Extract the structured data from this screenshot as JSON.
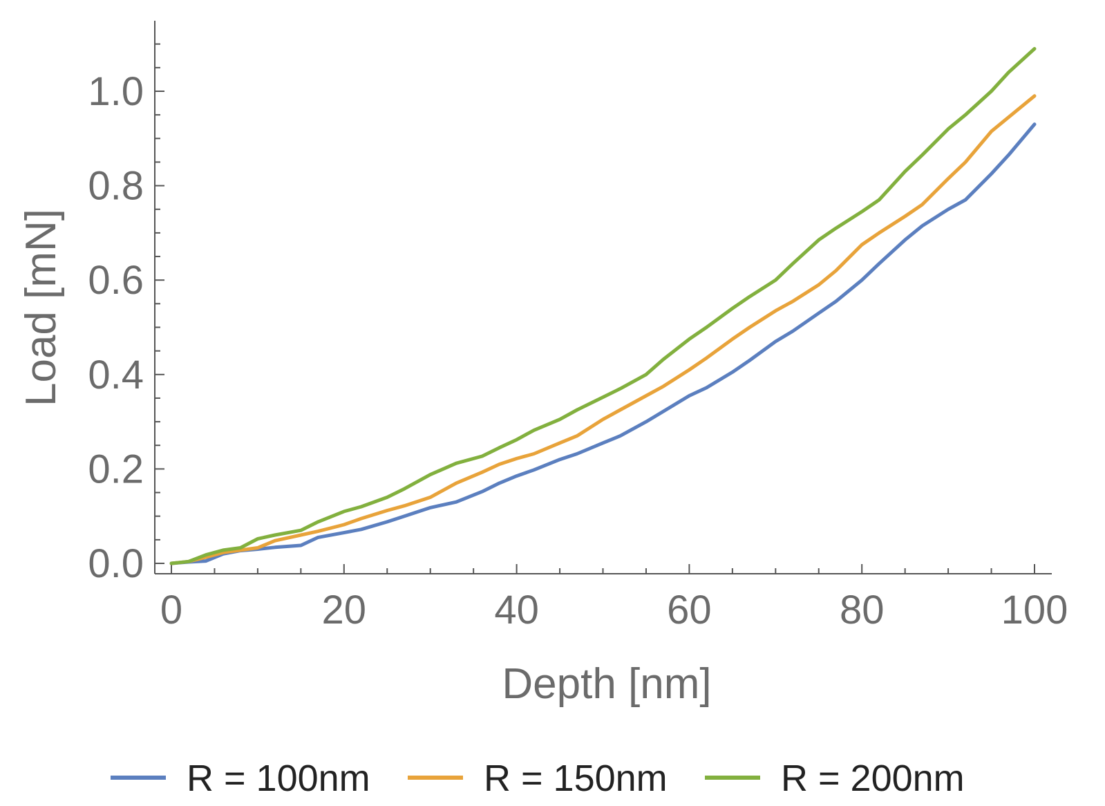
{
  "chart_data": {
    "type": "line",
    "title": "",
    "xlabel": "Depth [nm]",
    "ylabel": "Load [mN]",
    "xlim": [
      0,
      100
    ],
    "ylim": [
      0,
      1.1
    ],
    "grid": false,
    "legend_position": "bottom",
    "x_ticks": [
      0,
      20,
      40,
      60,
      80,
      100
    ],
    "x_tick_labels": [
      "0",
      "20",
      "40",
      "60",
      "80",
      "100"
    ],
    "y_ticks": [
      0.0,
      0.2,
      0.4,
      0.6,
      0.8,
      1.0
    ],
    "y_tick_labels": [
      "0.0",
      "0.2",
      "0.4",
      "0.6",
      "0.8",
      "1.0"
    ],
    "x": [
      0,
      2,
      4,
      6,
      8,
      10,
      12,
      15,
      17,
      20,
      22,
      25,
      27,
      30,
      33,
      36,
      38,
      40,
      42,
      45,
      47,
      50,
      52,
      55,
      57,
      60,
      62,
      65,
      67,
      70,
      72,
      75,
      77,
      80,
      82,
      85,
      87,
      90,
      92,
      95,
      97,
      100
    ],
    "series": [
      {
        "name": "R = 100nm",
        "color": "#5b7fbf",
        "values": [
          0.0,
          0.003,
          0.005,
          0.02,
          0.027,
          0.03,
          0.034,
          0.038,
          0.055,
          0.065,
          0.072,
          0.088,
          0.1,
          0.118,
          0.13,
          0.152,
          0.17,
          0.185,
          0.198,
          0.22,
          0.232,
          0.255,
          0.27,
          0.3,
          0.322,
          0.355,
          0.372,
          0.405,
          0.43,
          0.47,
          0.492,
          0.53,
          0.555,
          0.6,
          0.635,
          0.685,
          0.715,
          0.75,
          0.77,
          0.825,
          0.865,
          0.93
        ]
      },
      {
        "name": "R = 150nm",
        "color": "#e8a33a",
        "values": [
          0.0,
          0.004,
          0.013,
          0.023,
          0.028,
          0.033,
          0.048,
          0.06,
          0.068,
          0.082,
          0.095,
          0.112,
          0.122,
          0.14,
          0.17,
          0.193,
          0.21,
          0.222,
          0.232,
          0.255,
          0.27,
          0.305,
          0.325,
          0.355,
          0.375,
          0.41,
          0.435,
          0.475,
          0.5,
          0.535,
          0.555,
          0.59,
          0.62,
          0.675,
          0.7,
          0.735,
          0.76,
          0.815,
          0.85,
          0.915,
          0.945,
          0.99
        ]
      },
      {
        "name": "R = 200nm",
        "color": "#82b03e",
        "values": [
          0.0,
          0.004,
          0.018,
          0.028,
          0.033,
          0.052,
          0.06,
          0.07,
          0.088,
          0.11,
          0.12,
          0.14,
          0.158,
          0.188,
          0.212,
          0.227,
          0.245,
          0.262,
          0.282,
          0.305,
          0.325,
          0.352,
          0.37,
          0.4,
          0.432,
          0.475,
          0.5,
          0.54,
          0.565,
          0.6,
          0.635,
          0.685,
          0.71,
          0.745,
          0.77,
          0.83,
          0.865,
          0.92,
          0.95,
          1.0,
          1.04,
          1.09
        ]
      }
    ]
  }
}
